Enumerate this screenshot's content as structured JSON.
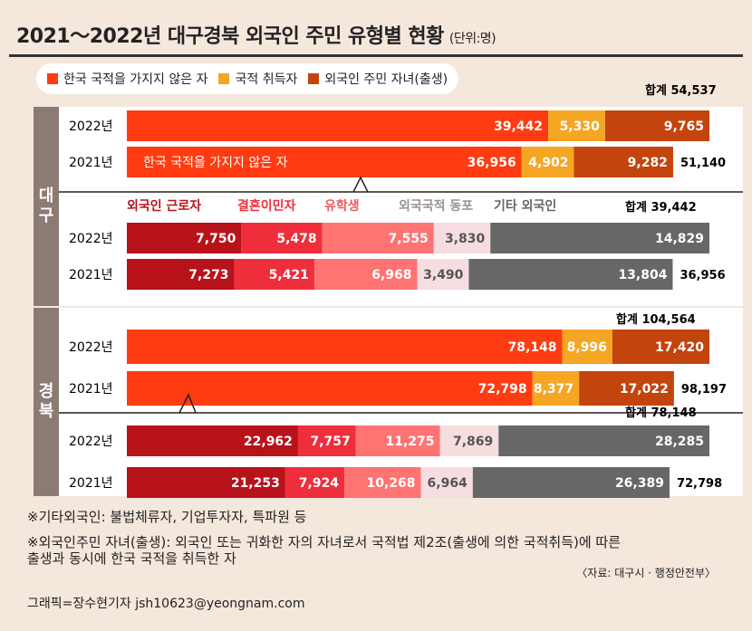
{
  "title": "2021～2022년 대구경북 외국인 주민 유형별 현황",
  "unit": "(단위:명)",
  "legend": [
    {
      "label": "한국 국적을 가지지 않은 자",
      "color": "#ff3b12"
    },
    {
      "label": "국적 취득자",
      "color": "#f5a623"
    },
    {
      "label": "외국인 주민 자녀(출생)",
      "color": "#c3440c"
    }
  ],
  "regions": {
    "daegu": "대\n구",
    "gyeongbuk": "경\n북"
  },
  "chart_data": [
    {
      "type": "bar",
      "orientation": "horizontal",
      "stacked": true,
      "title": "대구 외국인 주민 유형별",
      "total_label": "합계 54,537",
      "categories": [
        "2022년",
        "2021년"
      ],
      "series": [
        {
          "name": "한국 국적을 가지지 않은 자",
          "values": [
            39442,
            36956
          ],
          "labels": [
            "39,442",
            "36,956"
          ],
          "color": "#ff3b12"
        },
        {
          "name": "국적 취득자",
          "values": [
            5330,
            4902
          ],
          "labels": [
            "5,330",
            "4,902"
          ],
          "color": "#f5a623"
        },
        {
          "name": "외국인 주민 자녀(출생)",
          "values": [
            9765,
            9282
          ],
          "labels": [
            "9,765",
            "9,282"
          ],
          "color": "#c3440c"
        }
      ],
      "totals": [
        "",
        "51,140"
      ],
      "annotation": "한국 국적을 가지지 않은 자"
    },
    {
      "type": "bar",
      "orientation": "horizontal",
      "stacked": true,
      "title": "대구 한국 국적을 가지지 않은 자 세부",
      "total_label": "합계 39,442",
      "categories": [
        "2022년",
        "2021년"
      ],
      "series": [
        {
          "name": "외국인 근로자",
          "values": [
            7750,
            7273
          ],
          "labels": [
            "7,750",
            "7,273"
          ],
          "color": "#b8121b",
          "header_color": "#b8121b"
        },
        {
          "name": "결혼이민자",
          "values": [
            5478,
            5421
          ],
          "labels": [
            "5,478",
            "5,421"
          ],
          "color": "#ee2e3a",
          "header_color": "#ee2e3a"
        },
        {
          "name": "유학생",
          "values": [
            7555,
            6968
          ],
          "labels": [
            "7,555",
            "6,968"
          ],
          "color": "#ff7373",
          "header_color": "#f05a5a"
        },
        {
          "name": "외국국적 동포",
          "values": [
            3830,
            3490
          ],
          "labels": [
            "3,830",
            "3,490"
          ],
          "color": "#f6dde0",
          "header_color": "#9b9191"
        },
        {
          "name": "기타 외국인",
          "values": [
            14829,
            13804
          ],
          "labels": [
            "14,829",
            "13,804"
          ],
          "color": "#676767",
          "header_color": "#666"
        }
      ],
      "totals": [
        "",
        "36,956"
      ]
    },
    {
      "type": "bar",
      "orientation": "horizontal",
      "stacked": true,
      "title": "경북 외국인 주민 유형별",
      "total_label": "합계 104,564",
      "categories": [
        "2022년",
        "2021년"
      ],
      "series": [
        {
          "name": "한국 국적을 가지지 않은 자",
          "values": [
            78148,
            72798
          ],
          "labels": [
            "78,148",
            "72,798"
          ],
          "color": "#ff3b12"
        },
        {
          "name": "국적 취득자",
          "values": [
            8996,
            8377
          ],
          "labels": [
            "8,996",
            "8,377"
          ],
          "color": "#f5a623"
        },
        {
          "name": "외국인 주민 자녀(출생)",
          "values": [
            17420,
            17022
          ],
          "labels": [
            "17,420",
            "17,022"
          ],
          "color": "#c3440c"
        }
      ],
      "totals": [
        "",
        "98,197"
      ]
    },
    {
      "type": "bar",
      "orientation": "horizontal",
      "stacked": true,
      "title": "경북 한국 국적을 가지지 않은 자 세부",
      "total_label": "합계 78,148",
      "categories": [
        "2022년",
        "2021년"
      ],
      "series": [
        {
          "name": "외국인 근로자",
          "values": [
            22962,
            21253
          ],
          "labels": [
            "22,962",
            "21,253"
          ],
          "color": "#b8121b"
        },
        {
          "name": "결혼이민자",
          "values": [
            7757,
            7924
          ],
          "labels": [
            "7,757",
            "7,924"
          ],
          "color": "#ee2e3a"
        },
        {
          "name": "유학생",
          "values": [
            11275,
            10268
          ],
          "labels": [
            "11,275",
            "10,268"
          ],
          "color": "#ff7373"
        },
        {
          "name": "외국국적 동포",
          "values": [
            7869,
            6964
          ],
          "labels": [
            "7,869",
            "6,964"
          ],
          "color": "#f6dde0"
        },
        {
          "name": "기타 외국인",
          "values": [
            28285,
            26389
          ],
          "labels": [
            "28,285",
            "26,389"
          ],
          "color": "#676767"
        }
      ],
      "totals": [
        "",
        "72,798"
      ]
    }
  ],
  "notes": [
    "※기타외국인: 불법체류자, 기업투자자, 특파원 등",
    "※외국인주민 자녀(출생): 외국인 또는 귀화한 자의 자녀로서 국적법 제2조(출생에 의한 국적취득)에 따른",
    "출생과 동시에 한국 국적을 취득한 자"
  ],
  "source": "〈자료: 대구시 · 행정안전부〉",
  "credit": "그래픽=장수현기자 jsh10623@yeongnam.com"
}
